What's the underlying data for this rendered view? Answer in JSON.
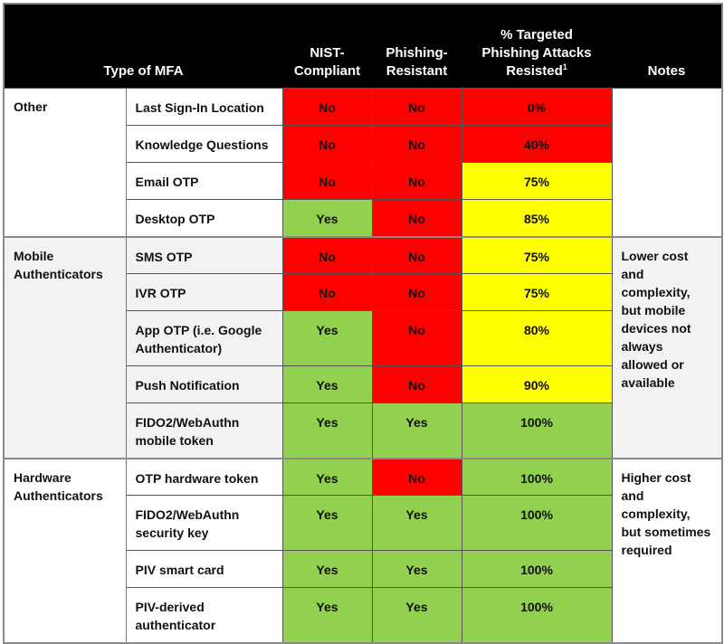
{
  "header": {
    "type_of_mfa": "Type of MFA",
    "nist_compliant": "NIST-Compliant",
    "nist_line1": "NIST-",
    "nist_line2": "Compliant",
    "phishing_resistant_line1": "Phishing-",
    "phishing_resistant_line2": "Resistant",
    "targeted_line1": "% Targeted",
    "targeted_line2": "Phishing Attacks",
    "targeted_line3": "Resisted",
    "targeted_footnote": "1",
    "notes": "Notes"
  },
  "colors": {
    "no": "#FF0000",
    "yes": "#92D050",
    "partial": "#FFFF00",
    "header_bg": "#000000",
    "mobile_group_bg": "#F2F2F2"
  },
  "groups": [
    {
      "name": "Other",
      "notes": "",
      "rows": [
        {
          "method": "Last Sign-In Location",
          "nist": "No",
          "phishing": "No",
          "resisted": "0%"
        },
        {
          "method": "Knowledge Questions",
          "nist": "No",
          "phishing": "No",
          "resisted": "40%"
        },
        {
          "method": "Email OTP",
          "nist": "No",
          "phishing": "No",
          "resisted": "75%"
        },
        {
          "method": "Desktop OTP",
          "nist": "Yes",
          "phishing": "No",
          "resisted": "85%"
        }
      ]
    },
    {
      "name_line1": "Mobile",
      "name_line2": "Authenticators",
      "notes": "Lower cost and complexity, but mobile devices not always allowed or available",
      "rows": [
        {
          "method": "SMS OTP",
          "nist": "No",
          "phishing": "No",
          "resisted": "75%"
        },
        {
          "method": "IVR OTP",
          "nist": "No",
          "phishing": "No",
          "resisted": "75%"
        },
        {
          "method": "App OTP (i.e. Google Authenticator)",
          "nist": "Yes",
          "phishing": "No",
          "resisted": "80%"
        },
        {
          "method": "Push Notification",
          "nist": "Yes",
          "phishing": "No",
          "resisted": "90%"
        },
        {
          "method": "FIDO2/WebAuthn mobile token",
          "nist": "Yes",
          "phishing": "Yes",
          "resisted": "100%"
        }
      ]
    },
    {
      "name_line1": "Hardware",
      "name_line2": "Authenticators",
      "notes": "Higher cost and complexity, but sometimes required",
      "rows": [
        {
          "method": "OTP hardware token",
          "nist": "Yes",
          "phishing": "No",
          "resisted": "100%"
        },
        {
          "method": "FIDO2/WebAuthn security key",
          "nist": "Yes",
          "phishing": "Yes",
          "resisted": "100%"
        },
        {
          "method": "PIV smart card",
          "nist": "Yes",
          "phishing": "Yes",
          "resisted": "100%"
        },
        {
          "method": "PIV-derived authenticator",
          "nist": "Yes",
          "phishing": "Yes",
          "resisted": "100%"
        }
      ]
    }
  ]
}
